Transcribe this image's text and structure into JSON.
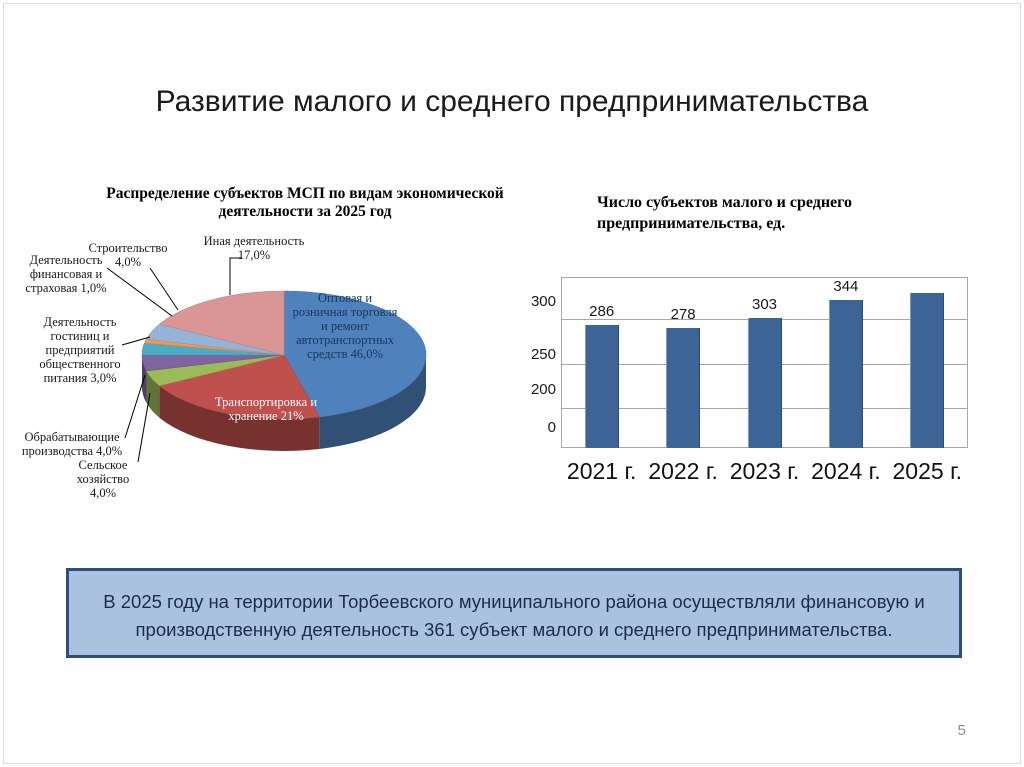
{
  "slide": {
    "title": "Развитие малого и среднего предпринимательства",
    "page_number": "5",
    "footer": {
      "text": "В 2025 году  на территории Торбеевского муниципального района осуществляли финансовую и производственную деятельность  361 субъект малого и среднего предпринимательства."
    }
  },
  "colors": {
    "bar_fill": "#3d6496",
    "grid": "#a6a6a6",
    "footer_bg": "#a9c2e0",
    "footer_border": "#2f4e7c"
  },
  "chart_data": [
    {
      "type": "pie",
      "style": "3d",
      "title": "Распределение субъектов МСП по видам экономической деятельности за 2025 год",
      "slices": [
        {
          "label": "Оптовая и розничная торговля и ремонт автотранспортных средств",
          "value": 46.0,
          "display": "Оптовая и розничная торговля и ремонт автотранспортных средств 46,0%",
          "color": "#4f81bd",
          "label_position": "inside"
        },
        {
          "label": "Транспортировка и хранение",
          "value": 21.0,
          "display": "Транспортировка и хранение 21%",
          "color": "#c0504d",
          "label_position": "inside"
        },
        {
          "label": "Сельское хозяйство",
          "value": 4.0,
          "display": "Сельское хозяйство 4,0%",
          "color": "#9bbb59",
          "label_position": "outside"
        },
        {
          "label": "Обрабатывающие производства",
          "value": 4.0,
          "display": "Обрабатывающие производства 4,0%",
          "color": "#8064a2",
          "label_position": "outside"
        },
        {
          "label": "Деятельность гостиниц и предприятий общественного питания",
          "value": 3.0,
          "display": "Деятельность гостиниц и предприятий общественного питания 3,0%",
          "color": "#4bacc6",
          "label_position": "outside"
        },
        {
          "label": "Деятельность финансовая и страховая",
          "value": 1.0,
          "display": "Деятельность финансовая и страховая 1,0%",
          "color": "#f79646",
          "label_position": "outside"
        },
        {
          "label": "Строительство",
          "value": 4.0,
          "display": "Строительство 4,0%",
          "color": "#95b3d7",
          "label_position": "outside"
        },
        {
          "label": "Иная деятельность",
          "value": 17.0,
          "display": "Иная деятельность 17,0%",
          "color": "#d99694",
          "label_position": "outside"
        }
      ]
    },
    {
      "type": "bar",
      "title": "Число субъектов малого и среднего предпринимательства, ед.",
      "categories": [
        "2021 г.",
        "2022 г.",
        "2023 г.",
        "2024 г.",
        "2025 г."
      ],
      "values": [
        286,
        278,
        303,
        344,
        361
      ],
      "value_labels": [
        "286",
        "278",
        "303",
        "344",
        ""
      ],
      "y_ticks": [
        "300",
        "250",
        "200",
        "0"
      ],
      "ylim": [
        0,
        330
      ],
      "grid": true,
      "legend": false
    }
  ]
}
